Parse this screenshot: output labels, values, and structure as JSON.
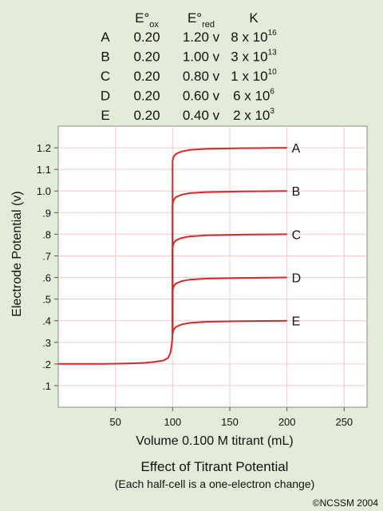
{
  "table": {
    "headers": {
      "eox": {
        "base": "E°",
        "sub": "ox"
      },
      "ered": {
        "base": "E°",
        "sub": "red"
      },
      "k": "K"
    },
    "rows": [
      {
        "label": "A",
        "eox": "0.20",
        "ered": "1.20 v",
        "k_base": "8 x 10",
        "k_exp": "16"
      },
      {
        "label": "B",
        "eox": "0.20",
        "ered": "1.00 v",
        "k_base": "3 x 10",
        "k_exp": "13"
      },
      {
        "label": "C",
        "eox": "0.20",
        "ered": "0.80 v",
        "k_base": "1 x 10",
        "k_exp": "10"
      },
      {
        "label": "D",
        "eox": "0.20",
        "ered": "0.60 v",
        "k_base": "6 x 10",
        "k_exp": "6"
      },
      {
        "label": "E",
        "eox": "0.20",
        "ered": "0.40 v",
        "k_base": "2 x 10",
        "k_exp": "3"
      }
    ]
  },
  "chart_data": {
    "type": "line",
    "xlabel": "Volume 0.100 M titrant (mL)",
    "ylabel": "Electrode Potential (v)",
    "xlim": [
      0,
      270
    ],
    "ylim": [
      0,
      1.3
    ],
    "xticks": [
      {
        "value": 50,
        "label": "50"
      },
      {
        "value": 100,
        "label": "100"
      },
      {
        "value": 150,
        "label": "150"
      },
      {
        "value": 200,
        "label": "200"
      },
      {
        "value": 250,
        "label": "250"
      }
    ],
    "yticks": [
      {
        "value": 0.1,
        "label": ".1"
      },
      {
        "value": 0.2,
        "label": ".2"
      },
      {
        "value": 0.3,
        "label": ".3"
      },
      {
        "value": 0.4,
        "label": ".4"
      },
      {
        "value": 0.5,
        "label": ".5"
      },
      {
        "value": 0.6,
        "label": ".6"
      },
      {
        "value": 0.7,
        "label": ".7"
      },
      {
        "value": 0.8,
        "label": ".8"
      },
      {
        "value": 0.9,
        "label": ".9"
      },
      {
        "value": 1.0,
        "label": "1.0"
      },
      {
        "value": 1.1,
        "label": "1.1"
      },
      {
        "value": 1.2,
        "label": "1.2"
      }
    ],
    "grid": true,
    "line_color": "#d4272b",
    "shared_before": [
      [
        0,
        0.2
      ],
      [
        20,
        0.2
      ],
      [
        40,
        0.2
      ],
      [
        60,
        0.202
      ],
      [
        75,
        0.205
      ],
      [
        85,
        0.21
      ],
      [
        92,
        0.216
      ],
      [
        96,
        0.228
      ],
      [
        98,
        0.25
      ],
      [
        99,
        0.28
      ],
      [
        99.6,
        0.31
      ],
      [
        100,
        0.34
      ]
    ],
    "series": [
      {
        "name": "A",
        "values": [
          [
            100,
            0.34
          ],
          [
            100,
            1.14
          ],
          [
            101,
            1.16
          ],
          [
            103,
            1.172
          ],
          [
            108,
            1.183
          ],
          [
            115,
            1.19
          ],
          [
            130,
            1.195
          ],
          [
            160,
            1.198
          ],
          [
            200,
            1.2
          ]
        ]
      },
      {
        "name": "B",
        "values": [
          [
            100,
            0.34
          ],
          [
            100,
            0.94
          ],
          [
            101,
            0.96
          ],
          [
            103,
            0.972
          ],
          [
            108,
            0.983
          ],
          [
            115,
            0.99
          ],
          [
            130,
            0.995
          ],
          [
            160,
            0.998
          ],
          [
            200,
            1.0
          ]
        ]
      },
      {
        "name": "C",
        "values": [
          [
            100,
            0.34
          ],
          [
            100,
            0.74
          ],
          [
            101,
            0.76
          ],
          [
            103,
            0.772
          ],
          [
            108,
            0.783
          ],
          [
            115,
            0.79
          ],
          [
            130,
            0.795
          ],
          [
            160,
            0.798
          ],
          [
            200,
            0.8
          ]
        ]
      },
      {
        "name": "D",
        "values": [
          [
            100,
            0.34
          ],
          [
            100,
            0.54
          ],
          [
            101,
            0.56
          ],
          [
            103,
            0.572
          ],
          [
            108,
            0.583
          ],
          [
            115,
            0.59
          ],
          [
            130,
            0.595
          ],
          [
            160,
            0.598
          ],
          [
            200,
            0.6
          ]
        ]
      },
      {
        "name": "E",
        "values": [
          [
            100,
            0.34
          ],
          [
            101,
            0.36
          ],
          [
            103,
            0.372
          ],
          [
            108,
            0.383
          ],
          [
            115,
            0.39
          ],
          [
            130,
            0.395
          ],
          [
            160,
            0.398
          ],
          [
            200,
            0.4
          ]
        ]
      }
    ]
  },
  "caption": {
    "title": "Effect of Titrant Potential",
    "subtitle": "(Each half-cell is a one-electron change)"
  },
  "credit": "©NCSSM 2004"
}
